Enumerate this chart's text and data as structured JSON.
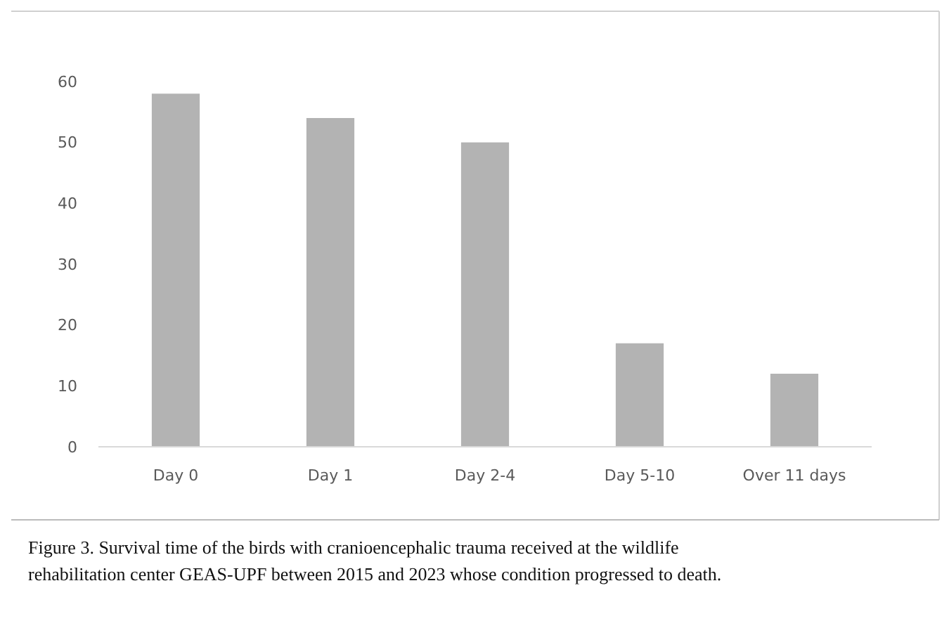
{
  "chart_data": {
    "type": "bar",
    "categories": [
      "Day 0",
      "Day 1",
      "Day 2-4",
      "Day 5-10",
      "Over 11 days"
    ],
    "values": [
      58,
      54,
      50,
      17,
      12
    ],
    "color": "#b3b3b3",
    "ylim": [
      0,
      60
    ],
    "yticks": [
      0,
      10,
      20,
      30,
      40,
      50,
      60
    ],
    "grid": false,
    "annotations": [
      "Figure 3. Survival time of the birds with cranioencephalic trauma received at the wildlife rehabilitation center GEAS-UPF between 2015 and 2023 whose condition progressed to death."
    ]
  }
}
